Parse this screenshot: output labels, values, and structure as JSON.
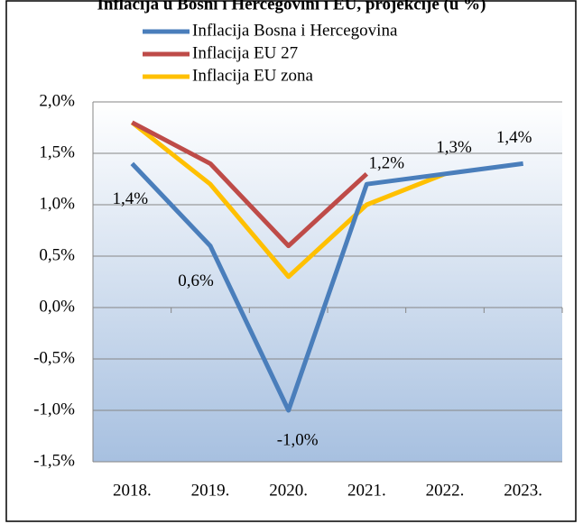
{
  "chart_data": {
    "type": "line",
    "title": "Inflacija u Bosni i Hercegovini i EU, projekcije (u %)",
    "categories": [
      "2018.",
      "2019.",
      "2020.",
      "2021.",
      "2022.",
      "2023."
    ],
    "series": [
      {
        "name": "Inflacija Bosna i Hercegovina",
        "color": "#4a7ebb",
        "values": [
          1.4,
          0.6,
          -1.0,
          1.2,
          1.3,
          1.4
        ],
        "value_labels": [
          "1,4%",
          "0,6%",
          "-1,0%",
          "1,2%",
          "1,3%",
          "1,4%"
        ]
      },
      {
        "name": "Inflacija EU 27",
        "color": "#be4b48",
        "values": [
          1.8,
          1.4,
          0.6,
          1.3,
          null,
          null
        ]
      },
      {
        "name": "Inflacija EU zona",
        "color": "#ffc000",
        "values": [
          1.8,
          1.2,
          0.3,
          1.0,
          1.3,
          null
        ]
      }
    ],
    "ylim": [
      -1.5,
      2.0
    ],
    "yticks": [
      {
        "value": -1.5,
        "label": "-1,5%"
      },
      {
        "value": -1.0,
        "label": "-1,0%"
      },
      {
        "value": -0.5,
        "label": "-0,5%"
      },
      {
        "value": 0.0,
        "label": "0,0%"
      },
      {
        "value": 0.5,
        "label": "0,5%"
      },
      {
        "value": 1.0,
        "label": "1,0%"
      },
      {
        "value": 1.5,
        "label": "1,5%"
      },
      {
        "value": 2.0,
        "label": "2,0%"
      }
    ],
    "grid": true,
    "legend": "top"
  }
}
